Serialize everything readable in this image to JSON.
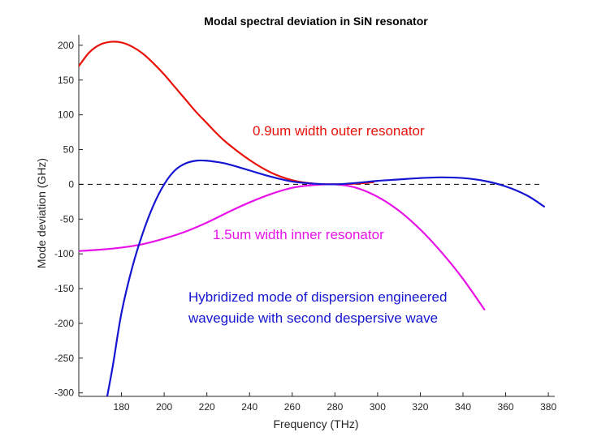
{
  "chart_data": {
    "type": "line",
    "title": "Modal spectral deviation in SiN resonator",
    "xlabel": "Frequency (THz)",
    "ylabel": "Mode deviation (GHz)",
    "xlim": [
      160,
      383
    ],
    "ylim": [
      -305,
      215
    ],
    "xticks": [
      180,
      200,
      220,
      240,
      260,
      280,
      300,
      320,
      340,
      360,
      380
    ],
    "yticks": [
      -300,
      -250,
      -200,
      -150,
      -100,
      -50,
      0,
      50,
      100,
      150,
      200
    ],
    "grid": false,
    "series": [
      {
        "name": "0.9um width outer resonator",
        "color": "#e8120b",
        "x": [
          160,
          165,
          170,
          175,
          180,
          185,
          190,
          195,
          200,
          205,
          210,
          215,
          220,
          225,
          230,
          240,
          250,
          260,
          270,
          280,
          290,
          298
        ],
        "y": [
          170,
          190,
          201,
          205,
          204,
          198,
          188,
          174,
          158,
          140,
          122,
          104,
          88,
          72,
          58,
          35,
          17,
          6,
          1,
          0,
          1,
          3
        ]
      },
      {
        "name": "1.5um width inner resonator",
        "color": "#e812e8",
        "x": [
          160,
          170,
          180,
          190,
          200,
          210,
          220,
          230,
          240,
          250,
          260,
          270,
          280,
          290,
          300,
          310,
          320,
          330,
          340,
          350
        ],
        "y": [
          -96,
          -94,
          -91,
          -86,
          -78,
          -68,
          -55,
          -40,
          -26,
          -14,
          -5,
          -1,
          0,
          -5,
          -18,
          -38,
          -65,
          -98,
          -136,
          -180
        ]
      },
      {
        "name": "Hybridized mode of dispersion engineered waveguide with second despersive wave",
        "color": "#1515d2",
        "x": [
          173,
          176,
          180,
          185,
          190,
          195,
          200,
          205,
          210,
          215,
          220,
          225,
          230,
          240,
          250,
          260,
          270,
          280,
          290,
          300,
          310,
          320,
          330,
          340,
          350,
          360,
          370,
          378
        ],
        "y": [
          -310,
          -260,
          -185,
          -120,
          -70,
          -30,
          0,
          20,
          30,
          34,
          34,
          32,
          29,
          20,
          11,
          4,
          1,
          0,
          2,
          5,
          7,
          9,
          10,
          9,
          5,
          -3,
          -16,
          -32
        ]
      }
    ],
    "reference_line": {
      "y": 0,
      "style": "dashed",
      "color": "#000000"
    },
    "annotations": [
      {
        "text": "0.9um width outer resonator",
        "color": "#e8120b"
      },
      {
        "text": "1.5um width inner resonator",
        "color": "#e812e8"
      },
      {
        "text": "Hybridized mode of dispersion engineered",
        "color": "#1515d2"
      },
      {
        "text": "waveguide with second despersive wave",
        "color": "#1515d2"
      }
    ]
  }
}
